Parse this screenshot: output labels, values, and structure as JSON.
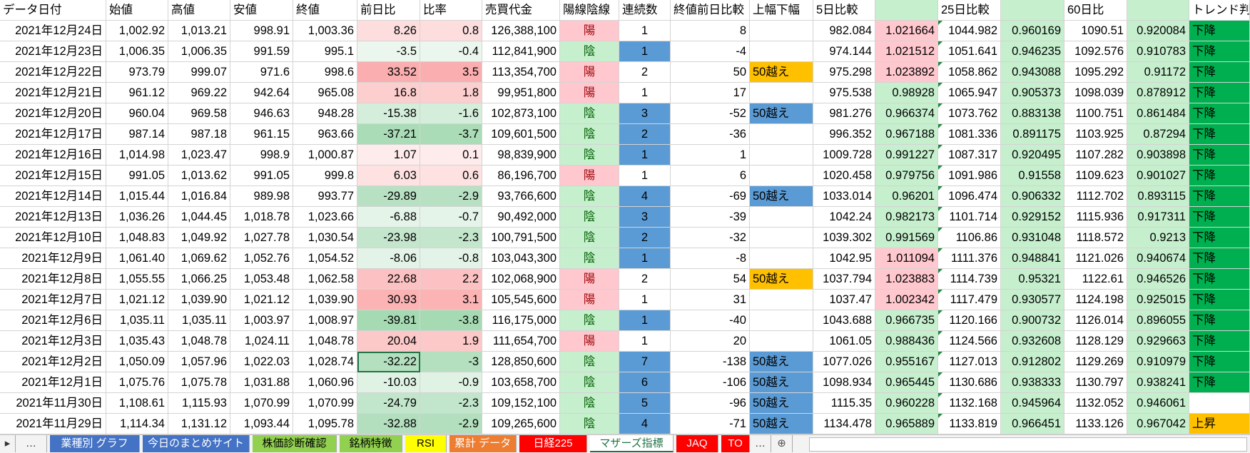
{
  "table": {
    "headers": [
      "データ日付",
      "始値",
      "高値",
      "安値",
      "終値",
      "前日比",
      "比率",
      "売買代金",
      "陽線陰線",
      "連続数",
      "終値前日比較",
      "上幅下幅",
      "5日比較",
      null,
      "25日比較",
      null,
      "60日比",
      null,
      "トレンド判"
    ],
    "rows": [
      [
        "2021年12月24日",
        "1,002.92",
        "1,013.21",
        "998.91",
        "1,003.36",
        "8.26",
        "0.8",
        "126,388,100",
        "陽",
        "1",
        "8",
        null,
        "982.084",
        "1.021664",
        "1044.982",
        "0.960169",
        "1090.51",
        "0.920084",
        "下降"
      ],
      [
        "2021年12月23日",
        "1,006.35",
        "1,006.35",
        "991.59",
        "995.1",
        "-3.5",
        "-0.4",
        "112,841,900",
        "陰",
        "1",
        "-4",
        null,
        "974.144",
        "1.021512",
        "1051.641",
        "0.946235",
        "1092.576",
        "0.910783",
        "下降"
      ],
      [
        "2021年12月22日",
        "973.79",
        "999.07",
        "971.6",
        "998.6",
        "33.52",
        "3.5",
        "113,354,700",
        "陽",
        "2",
        "50",
        "50越え",
        "975.298",
        "1.023892",
        "1058.862",
        "0.943088",
        "1095.292",
        "0.91172",
        "下降"
      ],
      [
        "2021年12月21日",
        "961.12",
        "969.22",
        "942.64",
        "965.08",
        "16.8",
        "1.8",
        "99,951,800",
        "陽",
        "1",
        "17",
        null,
        "975.538",
        "0.98928",
        "1065.947",
        "0.905373",
        "1098.039",
        "0.878912",
        "下降"
      ],
      [
        "2021年12月20日",
        "960.04",
        "969.58",
        "946.63",
        "948.28",
        "-15.38",
        "-1.6",
        "102,873,100",
        "陰",
        "3",
        "-52",
        "50越え",
        "981.276",
        "0.966374",
        "1073.762",
        "0.883138",
        "1100.751",
        "0.861484",
        "下降"
      ],
      [
        "2021年12月17日",
        "987.14",
        "987.18",
        "961.15",
        "963.66",
        "-37.21",
        "-3.7",
        "109,601,500",
        "陰",
        "2",
        "-36",
        null,
        "996.352",
        "0.967188",
        "1081.336",
        "0.891175",
        "1103.925",
        "0.87294",
        "下降"
      ],
      [
        "2021年12月16日",
        "1,014.98",
        "1,023.47",
        "998.9",
        "1,000.87",
        "1.07",
        "0.1",
        "98,839,900",
        "陰",
        "1",
        "1",
        null,
        "1009.728",
        "0.991227",
        "1087.317",
        "0.920495",
        "1107.282",
        "0.903898",
        "下降"
      ],
      [
        "2021年12月15日",
        "991.05",
        "1,013.62",
        "991.05",
        "999.8",
        "6.03",
        "0.6",
        "86,196,700",
        "陽",
        "1",
        "6",
        null,
        "1020.458",
        "0.979756",
        "1091.986",
        "0.91558",
        "1109.623",
        "0.901027",
        "下降"
      ],
      [
        "2021年12月14日",
        "1,015.44",
        "1,016.84",
        "989.98",
        "993.77",
        "-29.89",
        "-2.9",
        "93,766,600",
        "陰",
        "4",
        "-69",
        "50越え",
        "1033.014",
        "0.96201",
        "1096.474",
        "0.906332",
        "1112.702",
        "0.893115",
        "下降"
      ],
      [
        "2021年12月13日",
        "1,036.26",
        "1,044.45",
        "1,018.78",
        "1,023.66",
        "-6.88",
        "-0.7",
        "90,492,000",
        "陰",
        "3",
        "-39",
        null,
        "1042.24",
        "0.982173",
        "1101.714",
        "0.929152",
        "1115.936",
        "0.917311",
        "下降"
      ],
      [
        "2021年12月10日",
        "1,048.83",
        "1,049.92",
        "1,027.78",
        "1,030.54",
        "-23.98",
        "-2.3",
        "100,791,500",
        "陰",
        "2",
        "-32",
        null,
        "1039.302",
        "0.991569",
        "1106.86",
        "0.931048",
        "1118.572",
        "0.9213",
        "下降"
      ],
      [
        "2021年12月9日",
        "1,061.40",
        "1,069.62",
        "1,052.76",
        "1,054.52",
        "-8.06",
        "-0.8",
        "103,043,300",
        "陰",
        "1",
        "-8",
        null,
        "1042.95",
        "1.011094",
        "1111.376",
        "0.948841",
        "1121.026",
        "0.940674",
        "下降"
      ],
      [
        "2021年12月8日",
        "1,055.55",
        "1,066.25",
        "1,053.48",
        "1,062.58",
        "22.68",
        "2.2",
        "102,068,900",
        "陽",
        "2",
        "54",
        "50越え",
        "1037.794",
        "1.023883",
        "1114.739",
        "0.95321",
        "1122.61",
        "0.946526",
        "下降"
      ],
      [
        "2021年12月7日",
        "1,021.12",
        "1,039.90",
        "1,021.12",
        "1,039.90",
        "30.93",
        "3.1",
        "105,545,600",
        "陽",
        "1",
        "31",
        null,
        "1037.47",
        "1.002342",
        "1117.479",
        "0.930577",
        "1124.198",
        "0.925015",
        "下降"
      ],
      [
        "2021年12月6日",
        "1,035.11",
        "1,035.11",
        "1,003.97",
        "1,008.97",
        "-39.81",
        "-3.8",
        "116,175,000",
        "陰",
        "1",
        "-40",
        null,
        "1043.688",
        "0.966735",
        "1120.166",
        "0.900732",
        "1126.014",
        "0.896055",
        "下降"
      ],
      [
        "2021年12月3日",
        "1,035.43",
        "1,048.78",
        "1,024.11",
        "1,048.78",
        "20.04",
        "1.9",
        "111,654,700",
        "陽",
        "1",
        "20",
        null,
        "1061.05",
        "0.988436",
        "1124.566",
        "0.932608",
        "1128.129",
        "0.929663",
        "下降"
      ],
      [
        "2021年12月2日",
        "1,050.09",
        "1,057.96",
        "1,022.03",
        "1,028.74",
        "-32.22",
        "-3",
        "128,850,600",
        "陰",
        "7",
        "-138",
        "50越え",
        "1077.026",
        "0.955167",
        "1127.013",
        "0.912802",
        "1129.269",
        "0.910979",
        "下降"
      ],
      [
        "2021年12月1日",
        "1,075.76",
        "1,075.78",
        "1,031.88",
        "1,060.96",
        "-10.03",
        "-0.9",
        "103,658,700",
        "陰",
        "6",
        "-106",
        "50越え",
        "1098.934",
        "0.965445",
        "1130.686",
        "0.938333",
        "1130.797",
        "0.938241",
        "下降"
      ],
      [
        "2021年11月30日",
        "1,108.61",
        "1,115.93",
        "1,070.99",
        "1,070.99",
        "-24.79",
        "-2.3",
        "109,152,100",
        "陰",
        "5",
        "-96",
        "50越え",
        "1115.35",
        "0.960228",
        "1132.168",
        "0.945964",
        "1132.052",
        "0.946061",
        null
      ],
      [
        "2021年11月29日",
        "1,114.34",
        "1,131.12",
        "1,093.44",
        "1,095.78",
        "-32.88",
        "-2.9",
        "109,265,600",
        "陰",
        "4",
        "-71",
        "50越え",
        "1134.478",
        "0.965889",
        "1133.819",
        "0.966451",
        "1133.126",
        "0.967042",
        "上昇"
      ]
    ]
  },
  "tabs": [
    "▸",
    "…",
    "業種別 グラフ",
    "今日のまとめサイト",
    "株価診断確認",
    "銘柄特徴",
    "RSI",
    "累計 データ",
    "日経225",
    "マザーズ指標",
    "JAQ",
    "TO",
    "…",
    "⊕"
  ]
}
